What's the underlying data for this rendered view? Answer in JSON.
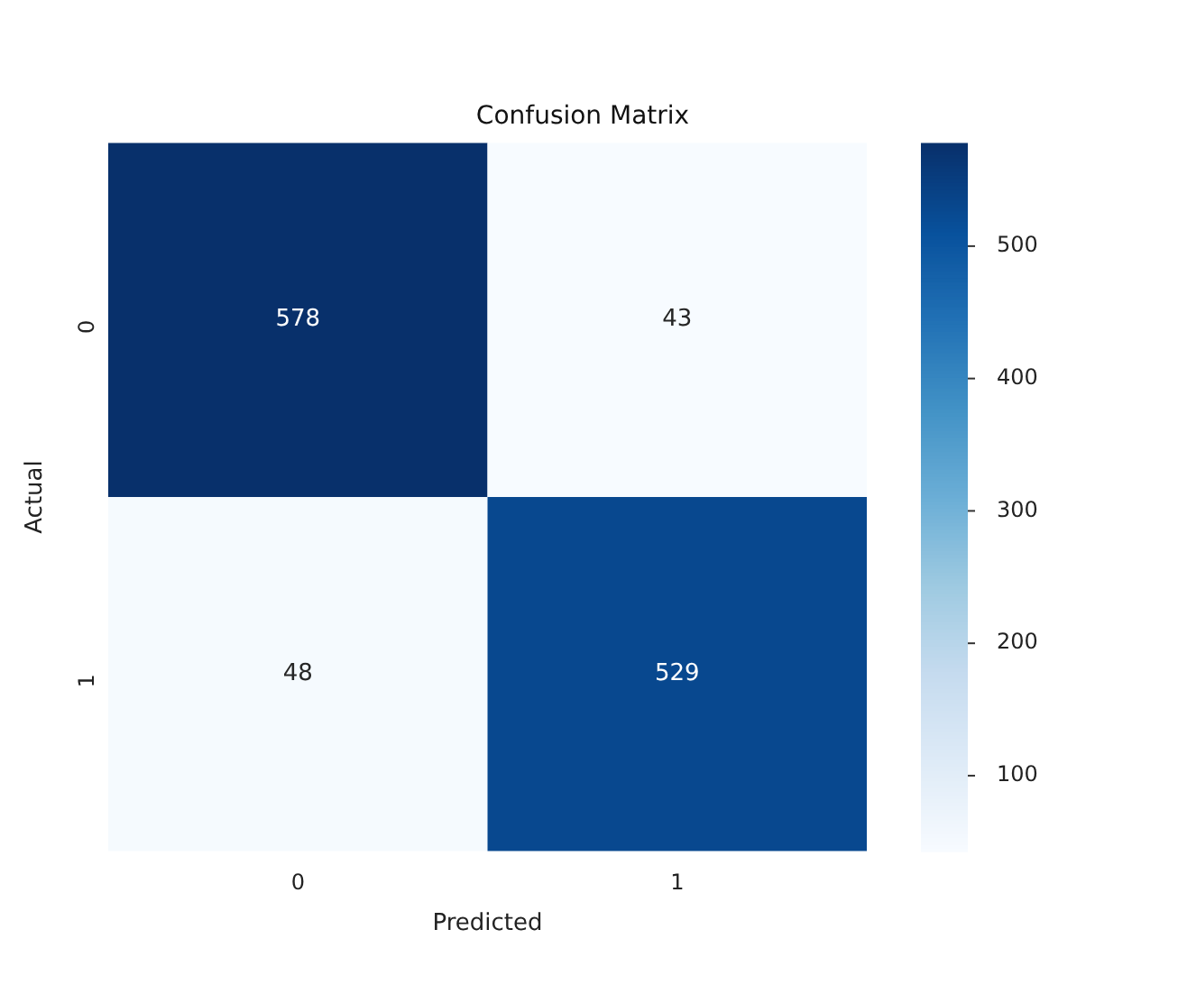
{
  "chart_data": {
    "type": "heatmap",
    "title": "Confusion Matrix",
    "xlabel": "Predicted",
    "ylabel": "Actual",
    "categories": [
      "0",
      "1"
    ],
    "y_categories": [
      "0",
      "1"
    ],
    "cells": [
      [
        578,
        43
      ],
      [
        48,
        529
      ]
    ],
    "data_labels": true,
    "clim": [
      43,
      578
    ],
    "cticks": [
      100,
      200,
      300,
      400,
      500
    ]
  }
}
